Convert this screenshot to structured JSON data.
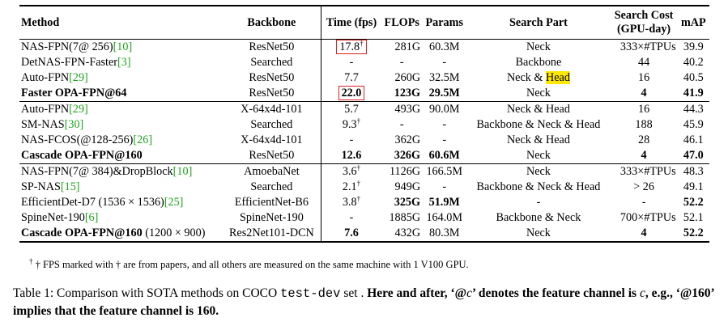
{
  "table": {
    "headers": {
      "method": "Method",
      "backbone": "Backbone",
      "time": "Time (fps)",
      "flops": "FLOPs",
      "params": "Params",
      "search_part": "Search Part",
      "search_cost": "Search Cost",
      "search_cost_unit": "(GPU-day)",
      "map": "mAP"
    },
    "rows": [
      {
        "method": "NAS-FPN(7@ 256)",
        "cite": "[10]",
        "backbone": "ResNet50",
        "time": "17.8",
        "time_mark": "†",
        "flops": "281G",
        "params": "60.3M",
        "search_part": "Neck",
        "search_cost": "333×#TPUs",
        "map": "39.9"
      },
      {
        "method": "DetNAS-FPN-Faster",
        "cite": "[3]",
        "backbone": "Searched",
        "time": "-",
        "flops": "-",
        "params": "-",
        "search_part": "Backbone",
        "search_cost": "44",
        "map": "40.2"
      },
      {
        "method": "Auto-FPN",
        "cite": "[29]",
        "backbone": "ResNet50",
        "time": "7.7",
        "flops": "260G",
        "params": "32.5M",
        "search_part": "Neck &",
        "search_part_highlight": "Head",
        "search_cost": "16",
        "map": "40.5"
      },
      {
        "method": "Faster OPA-FPN@64",
        "backbone": "ResNet50",
        "time": "22.0",
        "flops": "123G",
        "params": "29.5M",
        "search_part": "Neck",
        "search_cost": "4",
        "map": "41.9"
      },
      {
        "method": "Auto-FPN",
        "cite": "[29]",
        "backbone": "X-64x4d-101",
        "time": "5.7",
        "flops": "493G",
        "params": "90.0M",
        "search_part": "Neck & Head",
        "search_cost": "16",
        "map": "44.3"
      },
      {
        "method": "SM-NAS",
        "cite": "[30]",
        "backbone": "Searched",
        "time": "9.3",
        "time_mark": "†",
        "flops": "-",
        "params": "-",
        "search_part": "Backbone & Neck & Head",
        "search_cost": "188",
        "map": "45.9"
      },
      {
        "method": "NAS-FCOS(@128-256)",
        "cite": "[26]",
        "backbone": "X-64x4d-101",
        "time": "-",
        "flops": "362G",
        "params": "-",
        "search_part": "Neck & Head",
        "search_cost": "28",
        "map": "46.1"
      },
      {
        "method": "Cascade OPA-FPN@160",
        "backbone": "ResNet50",
        "time": "12.6",
        "flops": "326G",
        "params": "60.6M",
        "search_part": "Neck",
        "search_cost": "4",
        "map": "47.0"
      },
      {
        "method": "NAS-FPN(7@ 384)&DropBlock",
        "cite": "[10]",
        "backbone": "AmoebaNet",
        "time": "3.6",
        "time_mark": "†",
        "flops": "1126G",
        "params": "166.5M",
        "search_part": "Neck",
        "search_cost": "333×#TPUs",
        "map": "48.3"
      },
      {
        "method": "SP-NAS",
        "cite": "[15]",
        "backbone": "Searched",
        "time": "2.1",
        "time_mark": "†",
        "flops": "949G",
        "params": "-",
        "search_part": "Backbone & Neck & Head",
        "search_cost": "> 26",
        "map": "49.1"
      },
      {
        "method": "EfficientDet-D7 (1536 × 1536)",
        "cite": "[25]",
        "backbone": "EfficientNet-B6",
        "time": "3.8",
        "time_mark": "†",
        "flops": "325G",
        "params": "51.9M",
        "search_part": "-",
        "search_cost": "-",
        "map": "52.2"
      },
      {
        "method": "SpineNet-190",
        "cite": "[6]",
        "backbone": "SpineNet-190",
        "time": "-",
        "flops": "1885G",
        "params": "164.0M",
        "search_part": "Backbone & Neck",
        "search_cost": "700×#TPUs",
        "map": "52.1"
      },
      {
        "method": "Cascade OPA-FPN@160",
        "method_suffix": "(1200 × 900)",
        "backbone": "Res2Net101-DCN",
        "time": "7.6",
        "flops": "432G",
        "params": "80.3M",
        "search_part": "Neck",
        "search_cost": "4",
        "map": "52.2"
      }
    ]
  },
  "footnote": {
    "mark": "†",
    "text": "† FPS marked with † are from papers, and all others are measured on the same machine with 1 V100 GPU."
  },
  "caption": {
    "lead": "Table 1: Comparison with SOTA methods on COCO",
    "code": "test-dev",
    "mid": "set .",
    "bold1": "Here and after, ‘@",
    "var": "c",
    "bold2": "’ denotes the feature channel is",
    "var2": "c",
    "bold3": ", e.g., ‘@160’ implies that the feature channel is 160."
  },
  "colors": {
    "cite": "#1fa31f",
    "box": "#e02020",
    "highlight": "#ffe800"
  }
}
